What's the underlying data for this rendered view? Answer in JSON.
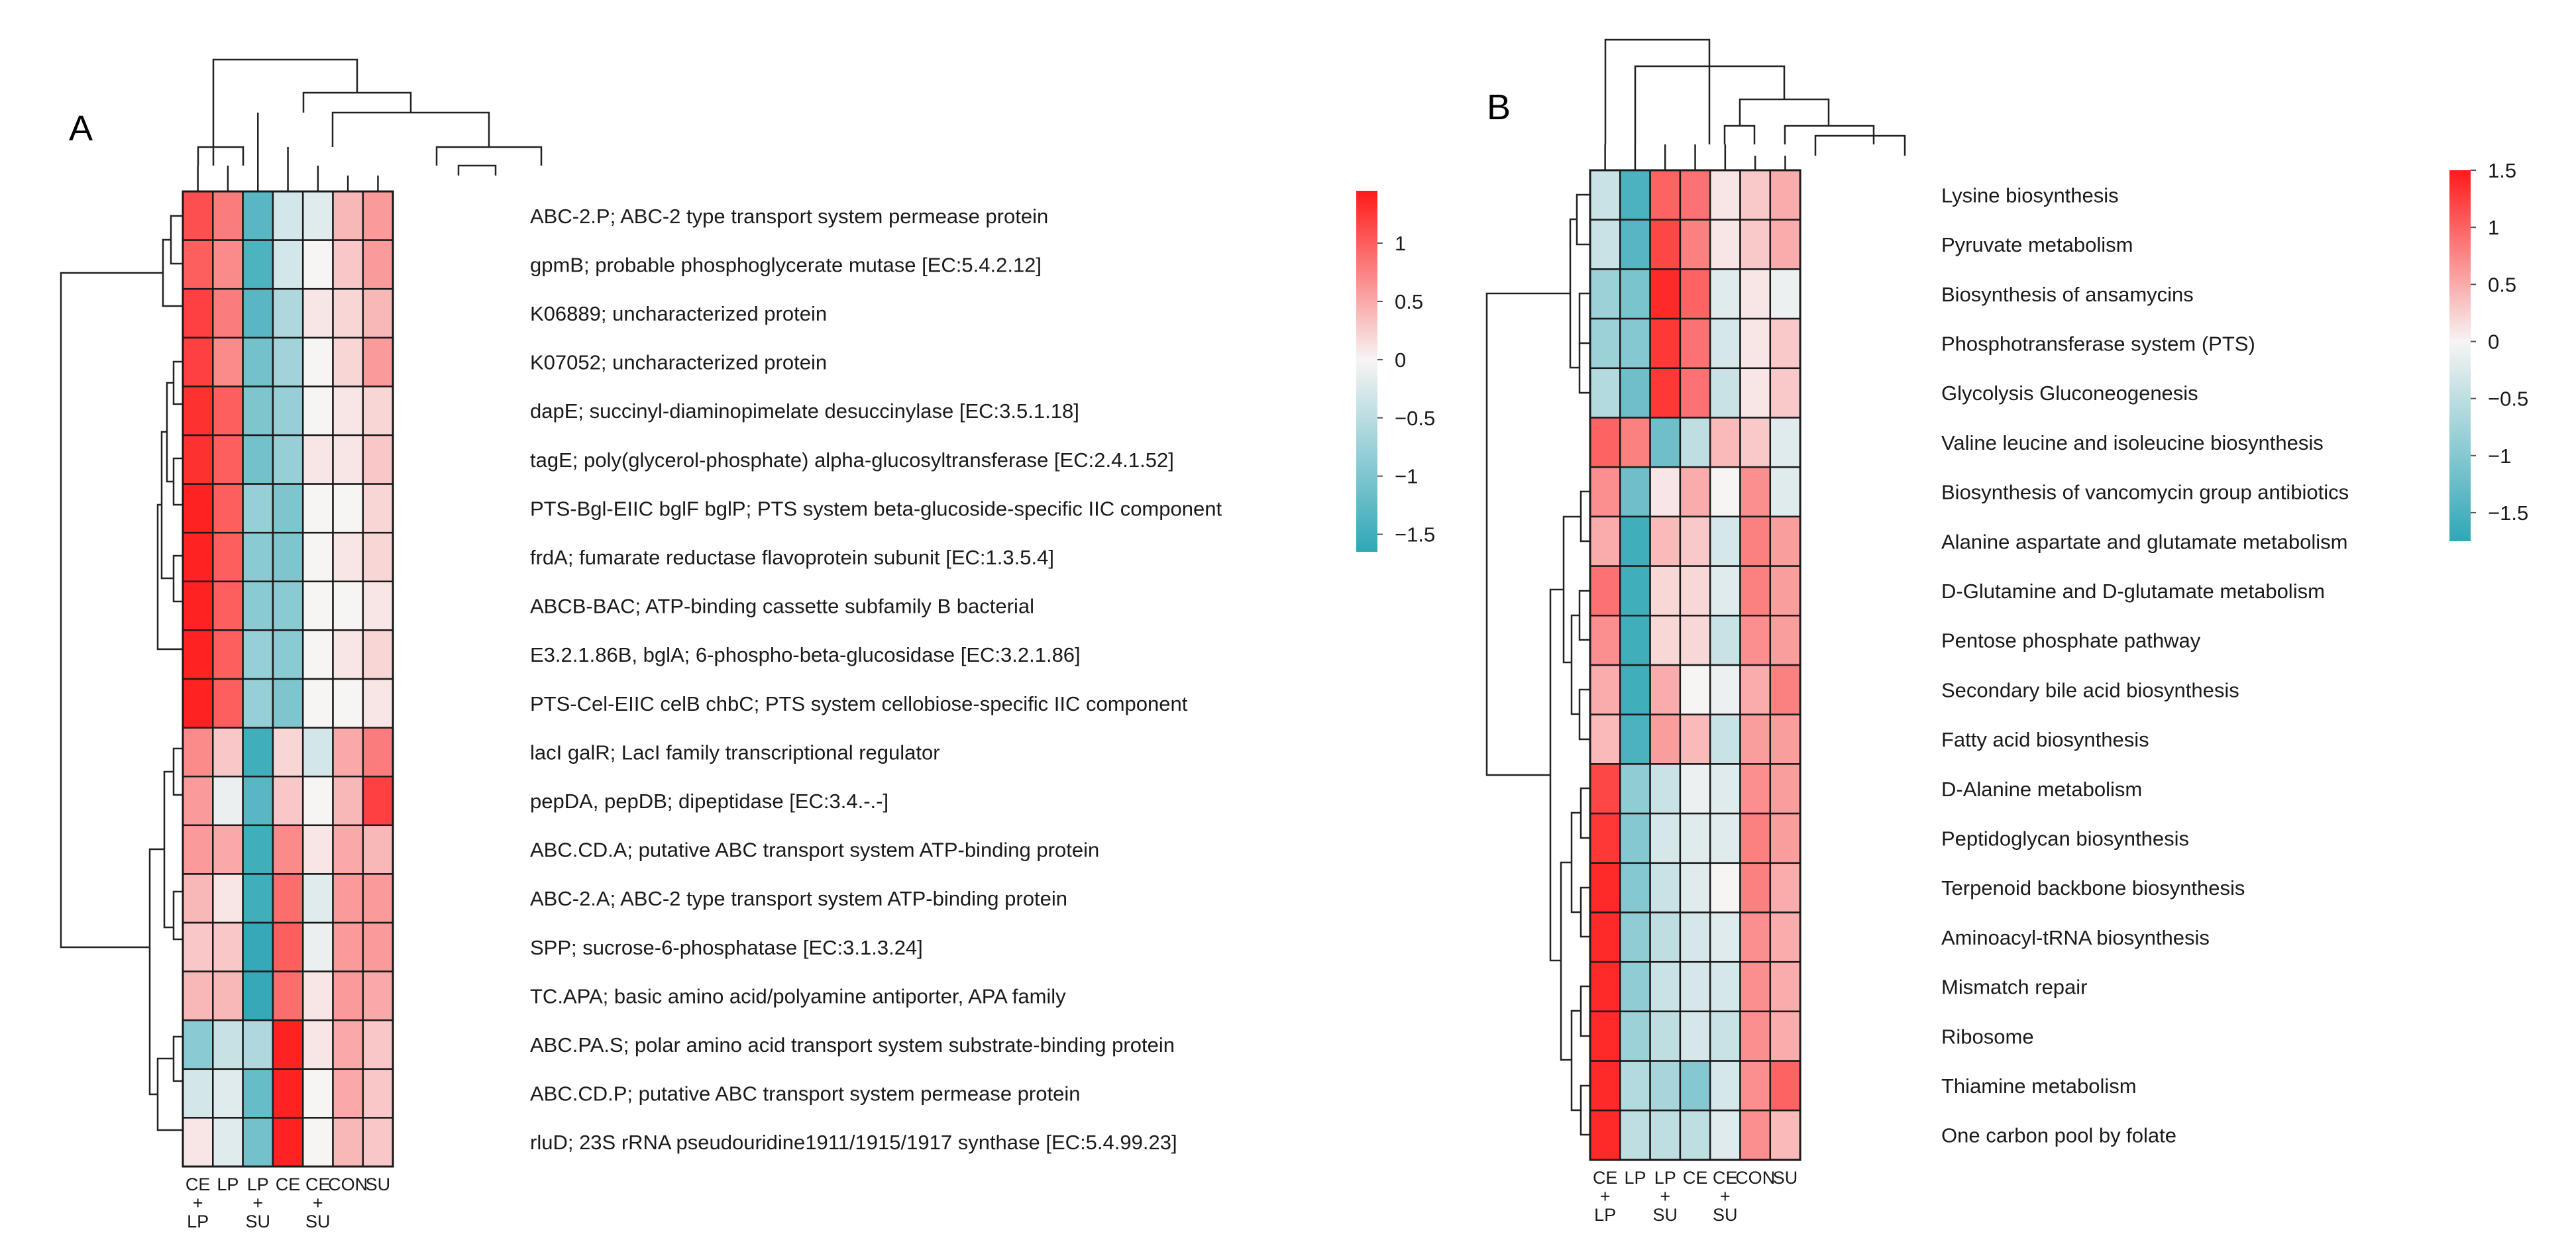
{
  "figure": {
    "panels": [
      "A",
      "B"
    ]
  },
  "colors": {
    "low": "#2fa7b6",
    "mid": "#f7f4f4",
    "high": "#ff1a1a",
    "grid": "#1a1a1a",
    "dendrogram": "#222222"
  },
  "chart_data": [
    {
      "type": "heatmap",
      "panel": "A",
      "title": "A",
      "columns": [
        {
          "key": "CE_LP",
          "label": [
            "CE",
            "+",
            "LP"
          ]
        },
        {
          "key": "LP",
          "label": [
            "LP"
          ]
        },
        {
          "key": "LP_SU",
          "label": [
            "LP",
            "+",
            "SU"
          ]
        },
        {
          "key": "CE",
          "label": [
            "CE"
          ]
        },
        {
          "key": "CE_SU",
          "label": [
            "CE",
            "+",
            "SU"
          ]
        },
        {
          "key": "CON",
          "label": [
            "CON"
          ]
        },
        {
          "key": "SU",
          "label": [
            "SU"
          ]
        }
      ],
      "rows": [
        "ABC-2.P; ABC-2 type transport system permease protein",
        "gpmB; probable phosphoglycerate mutase [EC:5.4.2.12]",
        "K06889; uncharacterized protein",
        "K07052; uncharacterized protein",
        "dapE; succinyl-diaminopimelate desuccinylase [EC:3.5.1.18]",
        "tagE; poly(glycerol-phosphate) alpha-glucosyltransferase [EC:2.4.1.52]",
        "PTS-Bgl-EIIC bglF bglP; PTS system beta-glucoside-specific IIC component",
        "frdA; fumarate reductase flavoprotein subunit [EC:1.3.5.4]",
        "ABCB-BAC; ATP-binding cassette subfamily B bacterial",
        "E3.2.1.86B, bglA; 6-phospho-beta-glucosidase [EC:3.2.1.86]",
        "PTS-Cel-EIIC celB chbC; PTS system cellobiose-specific IIC component",
        "lacI galR; LacI family transcriptional regulator",
        "pepDA, pepDB; dipeptidase [EC:3.4.-.-]",
        "ABC.CD.A; putative ABC transport system ATP-binding protein",
        "ABC-2.A; ABC-2 type transport system ATP-binding protein",
        "SPP; sucrose-6-phosphatase [EC:3.1.3.24]",
        "TC.APA; basic amino acid/polyamine antiporter, APA family",
        "ABC.PA.S; polar amino acid transport system substrate-binding protein",
        "ABC.CD.P; putative ABC transport system permease protein",
        "rluD; 23S rRNA pseudouridine1911/1915/1917 synthase [EC:5.4.99.23]"
      ],
      "values": [
        [
          1.1,
          0.8,
          -1.3,
          -0.3,
          -0.2,
          0.4,
          0.6
        ],
        [
          1.0,
          0.7,
          -1.4,
          -0.3,
          0.0,
          0.3,
          0.6
        ],
        [
          1.2,
          0.8,
          -1.3,
          -0.6,
          0.1,
          0.2,
          0.4
        ],
        [
          1.2,
          0.7,
          -1.1,
          -0.7,
          0.0,
          0.2,
          0.6
        ],
        [
          1.3,
          1.0,
          -1.0,
          -0.8,
          0.0,
          0.1,
          0.2
        ],
        [
          1.3,
          1.0,
          -1.1,
          -0.8,
          0.1,
          0.1,
          0.3
        ],
        [
          1.4,
          1.0,
          -0.8,
          -1.0,
          0.0,
          0.0,
          0.2
        ],
        [
          1.4,
          1.0,
          -0.9,
          -1.0,
          0.0,
          0.1,
          0.2
        ],
        [
          1.4,
          1.0,
          -0.9,
          -0.9,
          0.0,
          0.0,
          0.1
        ],
        [
          1.4,
          1.0,
          -0.8,
          -0.9,
          0.0,
          0.1,
          0.2
        ],
        [
          1.4,
          1.0,
          -0.8,
          -1.0,
          0.0,
          0.0,
          0.1
        ],
        [
          0.7,
          0.3,
          -1.5,
          0.2,
          -0.3,
          0.5,
          0.8
        ],
        [
          0.6,
          -0.1,
          -1.3,
          0.3,
          0.0,
          0.4,
          1.2
        ],
        [
          0.6,
          0.5,
          -1.5,
          0.7,
          0.1,
          0.5,
          0.4
        ],
        [
          0.4,
          0.1,
          -1.5,
          0.9,
          -0.2,
          0.6,
          0.6
        ],
        [
          0.3,
          0.3,
          -1.6,
          1.0,
          -0.1,
          0.6,
          0.6
        ],
        [
          0.4,
          0.4,
          -1.6,
          0.9,
          0.1,
          0.6,
          0.5
        ],
        [
          -0.9,
          -0.4,
          -0.6,
          1.4,
          0.1,
          0.5,
          0.3
        ],
        [
          -0.3,
          -0.2,
          -1.2,
          1.4,
          0.0,
          0.5,
          0.3
        ],
        [
          0.1,
          -0.2,
          -1.1,
          1.4,
          0.0,
          0.4,
          0.3
        ]
      ],
      "legend": {
        "min": -1.65,
        "max": 1.45,
        "ticks": [
          1,
          0.5,
          0,
          -0.5,
          -1,
          -1.5
        ],
        "tick_labels": [
          "1",
          "0.5",
          "0",
          "−0.5",
          "−1",
          "−1.5"
        ],
        "placement": "top-right"
      }
    },
    {
      "type": "heatmap",
      "panel": "B",
      "title": "B",
      "columns": [
        {
          "key": "CE_LP",
          "label": [
            "CE",
            "+",
            "LP"
          ]
        },
        {
          "key": "LP",
          "label": [
            "LP"
          ]
        },
        {
          "key": "LP_SU",
          "label": [
            "LP",
            "+",
            "SU"
          ]
        },
        {
          "key": "CE",
          "label": [
            "CE"
          ]
        },
        {
          "key": "CE_SU",
          "label": [
            "CE",
            "+",
            "SU"
          ]
        },
        {
          "key": "CON",
          "label": [
            "CON"
          ]
        },
        {
          "key": "SU",
          "label": [
            "SU"
          ]
        }
      ],
      "rows": [
        "Lysine biosynthesis",
        "Pyruvate metabolism",
        "Biosynthesis of ansamycins",
        "Phosphotransferase system (PTS)",
        "Glycolysis Gluconeogenesis",
        "Valine leucine and isoleucine biosynthesis",
        "Biosynthesis of vancomycin group antibiotics",
        "Alanine aspartate and glutamate metabolism",
        "D-Glutamine and D-glutamate metabolism",
        "Pentose phosphate pathway",
        "Secondary bile acid biosynthesis",
        "Fatty acid biosynthesis",
        "D-Alanine metabolism",
        "Peptidoglycan biosynthesis",
        "Terpenoid backbone biosynthesis",
        "Aminoacyl-tRNA biosynthesis",
        "Mismatch repair",
        "Ribosome",
        "Thiamine metabolism",
        "One carbon pool by folate"
      ],
      "values": [
        [
          -0.4,
          -1.5,
          1.0,
          0.9,
          0.1,
          0.3,
          0.5
        ],
        [
          -0.4,
          -1.4,
          1.2,
          0.8,
          0.1,
          0.3,
          0.5
        ],
        [
          -0.8,
          -1.1,
          1.4,
          1.0,
          -0.2,
          0.1,
          -0.1
        ],
        [
          -0.8,
          -1.0,
          1.3,
          0.9,
          -0.3,
          0.1,
          0.3
        ],
        [
          -0.6,
          -1.2,
          1.3,
          0.9,
          -0.4,
          0.1,
          0.3
        ],
        [
          1.0,
          0.8,
          -1.2,
          -0.5,
          0.4,
          0.3,
          -0.2
        ],
        [
          0.7,
          -1.2,
          0.1,
          0.5,
          0.0,
          0.7,
          -0.2
        ],
        [
          0.5,
          -1.6,
          0.4,
          0.3,
          -0.3,
          0.8,
          0.6
        ],
        [
          0.9,
          -1.6,
          0.2,
          0.2,
          -0.2,
          0.8,
          0.6
        ],
        [
          0.7,
          -1.6,
          0.2,
          0.2,
          -0.4,
          0.7,
          0.6
        ],
        [
          0.5,
          -1.6,
          0.5,
          0.0,
          -0.1,
          0.5,
          0.8
        ],
        [
          0.4,
          -1.5,
          0.6,
          0.4,
          -0.4,
          0.6,
          0.6
        ],
        [
          1.2,
          -0.9,
          -0.4,
          -0.1,
          -0.2,
          0.7,
          0.6
        ],
        [
          1.3,
          -1.0,
          -0.3,
          -0.2,
          -0.2,
          0.8,
          0.6
        ],
        [
          1.4,
          -1.0,
          -0.4,
          -0.2,
          0.0,
          0.8,
          0.5
        ],
        [
          1.4,
          -0.9,
          -0.5,
          -0.3,
          -0.2,
          0.7,
          0.5
        ],
        [
          1.4,
          -0.9,
          -0.4,
          -0.3,
          -0.3,
          0.7,
          0.5
        ],
        [
          1.4,
          -0.8,
          -0.5,
          -0.3,
          -0.4,
          0.7,
          0.5
        ],
        [
          1.4,
          -0.6,
          -0.7,
          -1.0,
          -0.3,
          0.7,
          1.0
        ],
        [
          1.4,
          -0.5,
          -0.5,
          -0.5,
          -0.2,
          0.7,
          0.4
        ]
      ],
      "legend": {
        "min": -1.75,
        "max": 1.5,
        "ticks": [
          1.5,
          1,
          0.5,
          0,
          -0.5,
          -1,
          -1.5
        ],
        "tick_labels": [
          "1.5",
          "1",
          "0.5",
          "0",
          "−0.5",
          "−1",
          "−1.5"
        ],
        "placement": "top-right"
      }
    }
  ]
}
